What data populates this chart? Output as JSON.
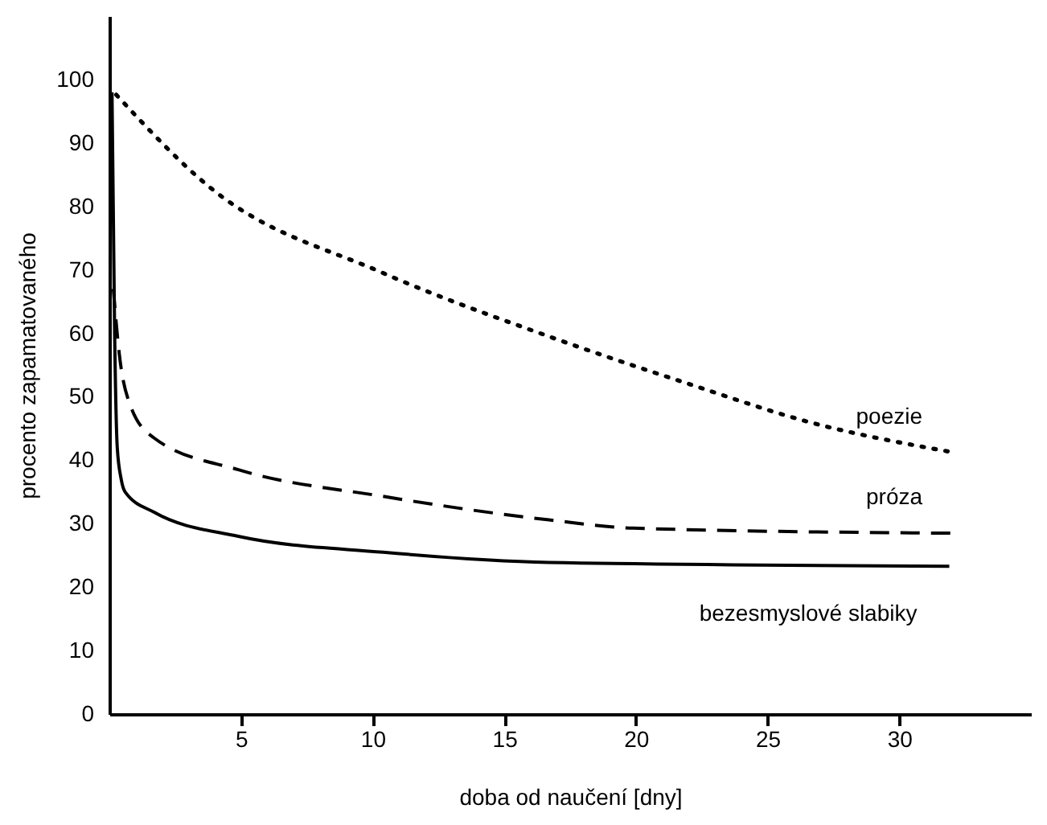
{
  "chart_data": {
    "type": "line",
    "xlabel": "doba od naučení [dny]",
    "ylabel": "procento zapamatovaného",
    "xlim": [
      0,
      35
    ],
    "ylim": [
      0,
      110
    ],
    "xticks": [
      5,
      10,
      15,
      20,
      25,
      30
    ],
    "yticks": [
      0,
      10,
      20,
      30,
      40,
      50,
      60,
      70,
      80,
      90,
      100
    ],
    "grid": false,
    "marker": "none",
    "series": [
      {
        "name": "poezie",
        "color": "#000000",
        "line_style": "dotted",
        "x": [
          0.26,
          3.85,
          10.4,
          16.7,
          22.1,
          26.5,
          32.1
        ],
        "values": [
          97.6,
          82.9,
          69.5,
          59.5,
          51.9,
          46.1,
          41.2
        ]
      },
      {
        "name": "próza",
        "color": "#000000",
        "line_style": "dashed",
        "x": [
          0.15,
          0.37,
          0.8,
          1.7,
          4.9,
          10.4,
          16.7,
          19.9,
          32.1
        ],
        "values": [
          67,
          57,
          48.6,
          43.5,
          38.5,
          34.3,
          30.6,
          29.3,
          28.5
        ]
      },
      {
        "name": "bezesmyslové slabiky",
        "color": "#000000",
        "line_style": "solid",
        "x": [
          0.1,
          0.2,
          0.3,
          0.45,
          0.6,
          1.7,
          4.9,
          10.4,
          16.7,
          31.9
        ],
        "values": [
          98,
          60,
          42,
          37,
          35,
          31.8,
          28,
          25.5,
          23.9,
          23.3
        ]
      }
    ]
  }
}
